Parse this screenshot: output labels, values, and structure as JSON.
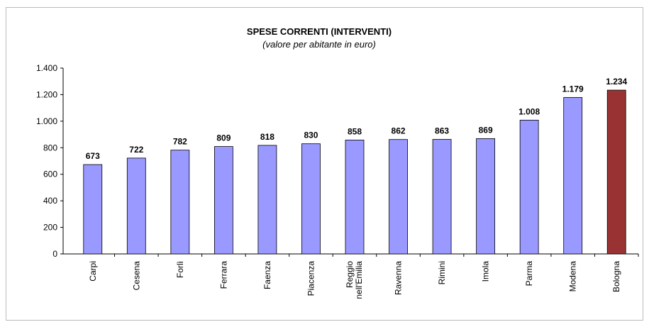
{
  "chart_data": {
    "type": "bar",
    "title": "SPESE CORRENTI (INTERVENTI)",
    "subtitle": "(valore per abitante in euro)",
    "categories": [
      "Carpi",
      "Cesena",
      "Forlì",
      "Ferrara",
      "Faenza",
      "Piacenza",
      "Reggio nell'Emilia",
      "Ravenna",
      "Rimini",
      "Imola",
      "Parma",
      "Modena",
      "Bologna"
    ],
    "values": [
      673,
      722,
      782,
      809,
      818,
      830,
      858,
      862,
      863,
      869,
      1008,
      1179,
      1234
    ],
    "value_labels": [
      "673",
      "722",
      "782",
      "809",
      "818",
      "830",
      "858",
      "862",
      "863",
      "869",
      "1.008",
      "1.179",
      "1.234"
    ],
    "colors": [
      "#9999ff",
      "#9999ff",
      "#9999ff",
      "#9999ff",
      "#9999ff",
      "#9999ff",
      "#9999ff",
      "#9999ff",
      "#9999ff",
      "#9999ff",
      "#9999ff",
      "#9999ff",
      "#993333"
    ],
    "ylim": [
      0,
      1400
    ],
    "yticks": [
      0,
      200,
      400,
      600,
      800,
      {
        "value": 1000,
        "label": "1.000"
      },
      {
        "value": 1200,
        "label": "1.200"
      },
      {
        "value": 1400,
        "label": "1.400"
      }
    ],
    "grid": false
  }
}
